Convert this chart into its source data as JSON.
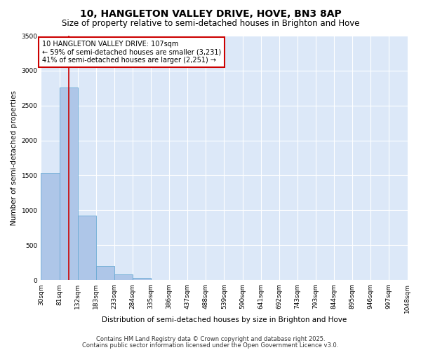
{
  "title": "10, HANGLETON VALLEY DRIVE, HOVE, BN3 8AP",
  "subtitle": "Size of property relative to semi-detached houses in Brighton and Hove",
  "xlabel": "Distribution of semi-detached houses by size in Brighton and Hove",
  "ylabel": "Number of semi-detached properties",
  "property_size": 107,
  "bin_edges": [
    30,
    81,
    132,
    183,
    233,
    284,
    335,
    386,
    437,
    488,
    539,
    590,
    641,
    692,
    743,
    793,
    844,
    895,
    946,
    997,
    1048
  ],
  "bar_heights": [
    1530,
    2760,
    920,
    200,
    80,
    30,
    5,
    0,
    0,
    0,
    0,
    0,
    0,
    0,
    0,
    0,
    0,
    0,
    0,
    0
  ],
  "bar_color": "#aec6e8",
  "bar_edge_color": "#6aaad4",
  "vline_color": "#cc0000",
  "vline_x": 107,
  "ylim": [
    0,
    3500
  ],
  "annotation_line1": "10 HANGLETON VALLEY DRIVE: 107sqm",
  "annotation_line2": "← 59% of semi-detached houses are smaller (3,231)",
  "annotation_line3": "41% of semi-detached houses are larger (2,251) →",
  "annotation_box_color": "#ffffff",
  "annotation_box_edge": "#cc0000",
  "footer1": "Contains HM Land Registry data © Crown copyright and database right 2025.",
  "footer2": "Contains public sector information licensed under the Open Government Licence v3.0.",
  "fig_background_color": "#ffffff",
  "plot_background_color": "#dce8f8",
  "grid_color": "#ffffff",
  "title_fontsize": 10,
  "subtitle_fontsize": 8.5,
  "annotation_fontsize": 7,
  "ylabel_fontsize": 7.5,
  "xlabel_fontsize": 7.5,
  "tick_fontsize": 6.5,
  "footer_fontsize": 6
}
